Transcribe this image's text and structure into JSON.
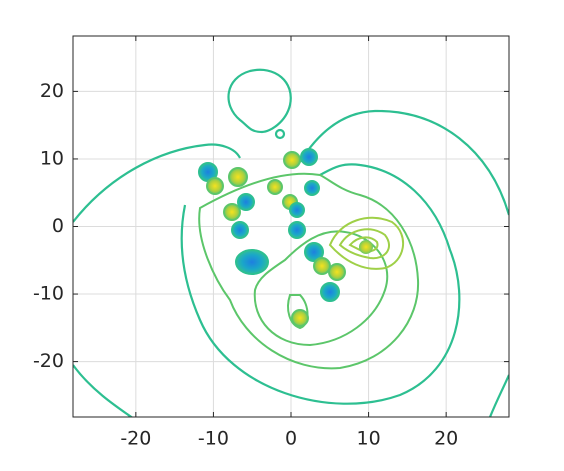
{
  "chart_data": {
    "type": "contour",
    "xlim": [
      -28.1,
      28.1
    ],
    "ylim": [
      -28.2,
      28.2
    ],
    "xticks": [
      -20,
      -10,
      0,
      10,
      20
    ],
    "yticks": [
      -20,
      -10,
      0,
      10,
      20
    ],
    "grid": true
  }
}
